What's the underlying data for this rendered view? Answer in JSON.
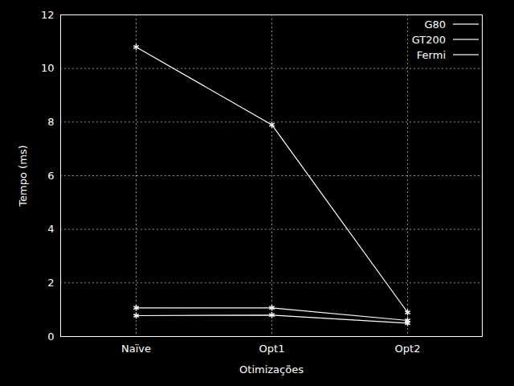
{
  "chart_data": {
    "type": "line",
    "x_label": "Otimizações",
    "y_label": "Tempo (ms)",
    "categories": [
      "Naïve",
      "Opt1",
      "Opt2"
    ],
    "series": [
      {
        "name": "G80",
        "color": "#ffffff",
        "marker": "asterisk",
        "values": [
          10.8,
          7.9,
          0.9
        ]
      },
      {
        "name": "GT200",
        "color": "#ffffff",
        "marker": "asterisk",
        "values": [
          1.07,
          1.07,
          0.6
        ]
      },
      {
        "name": "Fermi",
        "color": "#ffffff",
        "marker": "asterisk",
        "values": [
          0.78,
          0.8,
          0.5
        ]
      }
    ],
    "ylim": [
      0,
      12
    ],
    "yticks": [
      0,
      2,
      4,
      6,
      8,
      10,
      12
    ],
    "grid": true,
    "legend": "top-right"
  }
}
